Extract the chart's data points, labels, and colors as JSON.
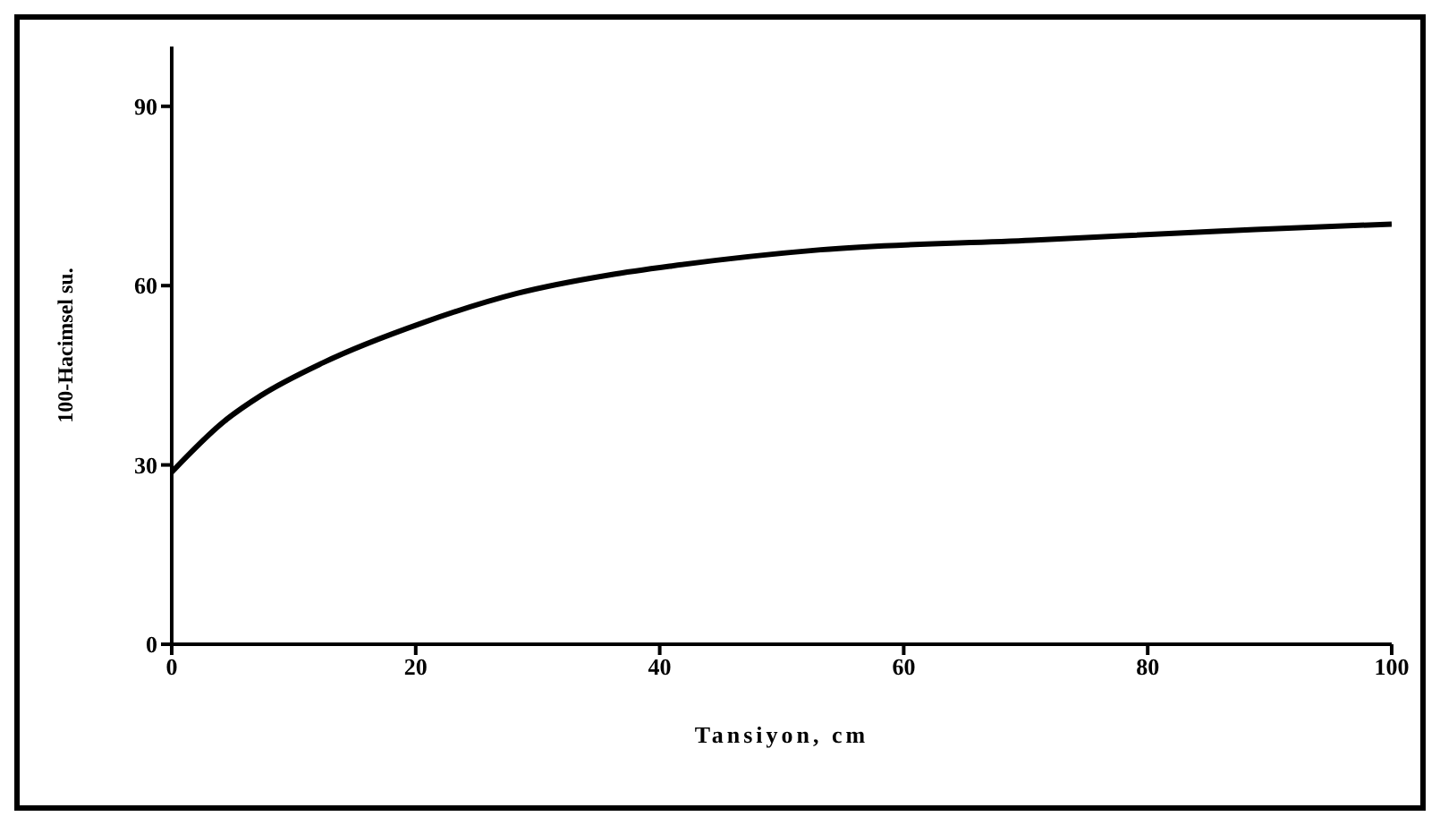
{
  "chart_data": {
    "type": "line",
    "xlabel": "Tansiyon, cm",
    "ylabel": "100-Hacimsel su.",
    "xlim": [
      0,
      100
    ],
    "xticks": [
      0,
      20,
      40,
      60,
      80,
      100
    ],
    "ylim": [
      0,
      100
    ],
    "yticks": [
      0,
      30,
      60,
      90
    ],
    "grid": false,
    "legend": false,
    "marker": "none",
    "line_style": "solid",
    "series": [
      {
        "color": "#000000",
        "x": [
          0,
          4.3,
          7.3,
          12.4,
          20.6,
          28.3,
          35.9,
          41,
          53.2,
          70.5,
          88.8,
          100
        ],
        "values": [
          28.8,
          37.3,
          41.6,
          47.1,
          53.8,
          58.7,
          61.8,
          63.3,
          66,
          67.6,
          69.4,
          70.3
        ]
      }
    ]
  }
}
